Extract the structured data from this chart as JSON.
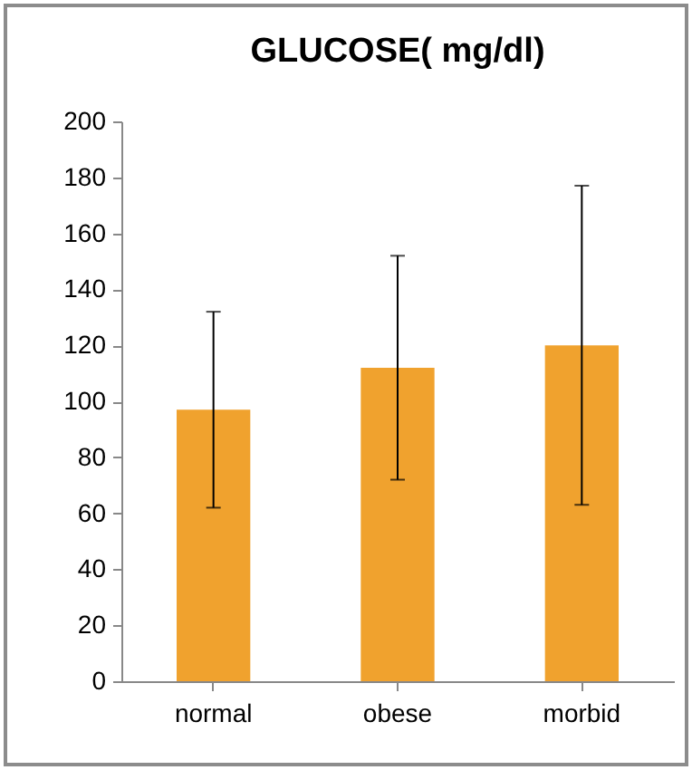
{
  "chart_data": {
    "type": "bar",
    "title": "GLUCOSE( mg/dl)",
    "categories": [
      "normal",
      "obese",
      "morbid"
    ],
    "values": [
      97,
      112,
      120
    ],
    "errors": [
      35,
      40,
      57
    ],
    "color": "#f0a22e",
    "ylim": [
      0,
      200
    ],
    "yticks": [
      0,
      20,
      40,
      60,
      80,
      100,
      120,
      140,
      160,
      180,
      200
    ],
    "grid": false
  }
}
